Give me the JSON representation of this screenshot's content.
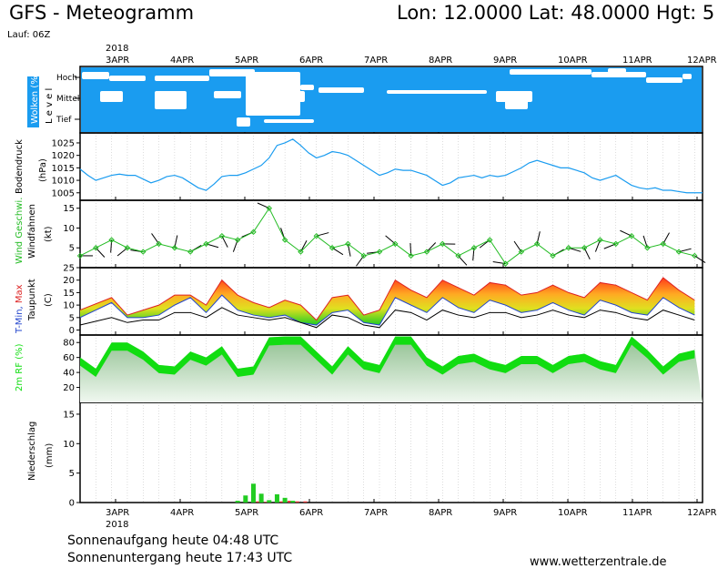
{
  "header": {
    "title": "GFS - Meteogramm",
    "location": "Lon: 12.0000 Lat: 48.0000 Hgt: 5",
    "run": "Lauf: 06Z"
  },
  "footer": {
    "sunrise": "Sonnenaufgang heute 04:48 UTC",
    "sunset": "Sonnenuntergang heute 17:43 UTC",
    "website": "www.wetterzentrale.de"
  },
  "colors": {
    "cloud_sky": "#1a9cf0",
    "pressure_line": "#1a9cf0",
    "wind_line": "#22bb22",
    "tmin": "#2244cc",
    "tmax": "#dd2222",
    "humidity": "#11dd11",
    "precip_conv": "#22cc22",
    "precip_large": "#dd3333"
  },
  "chart_data": {
    "type": "line",
    "x": {
      "dates": [
        "3APR",
        "4APR",
        "5APR",
        "6APR",
        "7APR",
        "8APR",
        "9APR",
        "10APR",
        "11APR",
        "12APR"
      ],
      "year": "2018"
    },
    "panels": [
      {
        "id": "clouds",
        "ylabel": "Wolken (%)",
        "ylabel2": "L e v e l",
        "levels": [
          "Hoch",
          "Mittel",
          "Tief"
        ]
      },
      {
        "id": "pressure",
        "ylabel": "Bodendruck",
        "ylabel2": "(hPa)",
        "yticks": [
          1005,
          1010,
          1015,
          1020,
          1025
        ],
        "ylim": [
          1002,
          1029
        ],
        "series": [
          {
            "t": [
              0,
              0.5,
              1,
              1.5,
              2,
              2.5,
              3,
              3.5,
              4,
              4.5,
              5,
              5.5,
              6,
              6.5,
              7,
              7.5,
              8,
              8.5,
              9,
              9.5,
              10,
              10.5,
              11,
              11.5,
              12,
              12.5,
              13,
              13.5,
              14,
              14.5,
              15,
              15.5,
              16,
              16.5,
              17,
              17.5,
              18,
              18.5,
              19,
              19.5,
              20,
              20.5,
              21,
              21.5,
              22,
              22.5,
              23,
              23.5,
              24,
              24.5,
              25,
              25.5,
              26,
              26.5,
              27,
              27.5,
              28,
              28.5,
              29,
              29.5,
              30,
              30.5,
              31,
              31.5,
              32,
              32.5,
              33,
              33.5,
              34,
              34.5,
              35,
              35.5,
              36,
              36.5,
              37,
              37.5,
              38,
              38.5,
              39,
              39.5
            ],
            "v": [
              1014.5,
              1012,
              1010,
              1011,
              1012,
              1012.5,
              1012,
              1012,
              1010.5,
              1009,
              1010,
              1011.5,
              1012,
              1011,
              1009,
              1007,
              1006,
              1008.5,
              1011.5,
              1012,
              1012,
              1013,
              1014.5,
              1016,
              1019,
              1024,
              1025,
              1026.5,
              1024,
              1021,
              1019,
              1020,
              1021.5,
              1021,
              1020,
              1018,
              1016,
              1014,
              1012,
              1013,
              1014.5,
              1014,
              1014,
              1013,
              1012,
              1010,
              1008,
              1009,
              1011,
              1011.5,
              1012,
              1011,
              1012,
              1011.5,
              1012,
              1013.5,
              1015,
              1017,
              1018,
              1017,
              1016,
              1015,
              1015,
              1014,
              1013,
              1011,
              1010,
              1011,
              1012,
              1010,
              1008,
              1007,
              1006.5,
              1007,
              1006,
              1006,
              1005.5,
              1005,
              1005,
              1005
            ]
          }
        ]
      },
      {
        "id": "wind",
        "ylabel": "Wind Geschwi.",
        "ylabel2": "Windfahnen",
        "ylabel3": "(kt)",
        "yticks": [
          5,
          10,
          15
        ],
        "ylim": [
          0,
          17
        ],
        "series": [
          {
            "t": [
              0,
              1,
              2,
              3,
              4,
              5,
              6,
              7,
              8,
              9,
              10,
              11,
              12,
              13,
              14,
              15,
              16,
              17,
              18,
              19,
              20,
              21,
              22,
              23,
              24,
              25,
              26,
              27,
              28,
              29,
              30,
              31,
              32,
              33,
              34,
              35,
              36,
              37,
              38,
              39
            ],
            "v": [
              3,
              5,
              7,
              5,
              4,
              6,
              5,
              4,
              6,
              8,
              7,
              9,
              15,
              7,
              4,
              8,
              5,
              6,
              3,
              4,
              6,
              3,
              4,
              6,
              3,
              5,
              7,
              1,
              4,
              6,
              3,
              5,
              5,
              7,
              6,
              8,
              5,
              6,
              4,
              3
            ]
          }
        ]
      },
      {
        "id": "temperature",
        "ylabel": "T-Min, Max",
        "ylabel2": "Taupunkt",
        "ylabel3": "(C)",
        "yticks": [
          0,
          5,
          10,
          15,
          20,
          25
        ],
        "ylim": [
          -2,
          25
        ],
        "series": [
          {
            "name": "T-Max",
            "t": [
              0,
              2,
              3,
              4,
              5,
              6,
              7,
              8,
              9,
              10,
              11,
              12,
              13,
              14,
              15,
              16,
              17,
              18,
              19,
              20,
              21,
              22,
              23,
              24,
              25,
              26,
              27,
              28,
              29,
              30,
              31,
              32,
              33,
              34,
              35,
              36,
              37,
              38,
              39
            ],
            "v": [
              8,
              13,
              6,
              8,
              10,
              14,
              14,
              10,
              20,
              14,
              11,
              9,
              12,
              10,
              4,
              13,
              14,
              6,
              8,
              20,
              16,
              13,
              20,
              17,
              14,
              19,
              18,
              14,
              15,
              18,
              15,
              13,
              19,
              18,
              15,
              12,
              21,
              16,
              12
            ]
          },
          {
            "name": "T-Min",
            "t": [
              0,
              2,
              3,
              4,
              5,
              6,
              7,
              8,
              9,
              10,
              11,
              12,
              13,
              14,
              15,
              16,
              17,
              18,
              19,
              20,
              21,
              22,
              23,
              24,
              25,
              26,
              27,
              28,
              29,
              30,
              31,
              32,
              33,
              34,
              35,
              36,
              37,
              38,
              39
            ],
            "v": [
              5,
              11,
              5,
              5,
              6,
              10,
              13,
              7,
              14,
              8,
              6,
              5,
              6,
              3,
              2,
              7,
              8,
              3,
              2,
              13,
              10,
              7,
              13,
              9,
              7,
              12,
              10,
              7,
              8,
              11,
              8,
              6,
              12,
              10,
              7,
              6,
              13,
              9,
              6
            ]
          },
          {
            "name": "Taupunkt",
            "t": [
              0,
              2,
              3,
              4,
              5,
              6,
              7,
              8,
              9,
              10,
              11,
              12,
              13,
              14,
              15,
              16,
              17,
              18,
              19,
              20,
              21,
              22,
              23,
              24,
              25,
              26,
              27,
              28,
              29,
              30,
              31,
              32,
              33,
              34,
              35,
              36,
              37,
              38,
              39
            ],
            "v": [
              2,
              5,
              3,
              4,
              4,
              7,
              7,
              5,
              9,
              6,
              5,
              4,
              5,
              3,
              1,
              6,
              5,
              2,
              1,
              8,
              7,
              4,
              8,
              6,
              5,
              7,
              7,
              5,
              6,
              8,
              6,
              5,
              8,
              7,
              5,
              4,
              8,
              6,
              4
            ]
          }
        ]
      },
      {
        "id": "humidity",
        "ylabel": "2m RF (%)",
        "yticks": [
          20,
          40,
          60,
          80
        ],
        "ylim": [
          0,
          90
        ],
        "series": [
          {
            "t": [
              0,
              1,
              2,
              3,
              4,
              5,
              6,
              7,
              8,
              9,
              10,
              11,
              12,
              13,
              14,
              15,
              16,
              17,
              18,
              19,
              20,
              21,
              22,
              23,
              24,
              25,
              26,
              27,
              28,
              29,
              30,
              31,
              32,
              33,
              34,
              35,
              36,
              37,
              38,
              39
            ],
            "v": [
              60,
              45,
              80,
              80,
              68,
              50,
              48,
              68,
              60,
              75,
              45,
              48,
              87,
              88,
              88,
              68,
              48,
              75,
              55,
              50,
              88,
              88,
              60,
              48,
              62,
              65,
              55,
              50,
              62,
              62,
              50,
              62,
              65,
              55,
              50,
              88,
              70,
              48,
              65,
              70
            ]
          }
        ]
      },
      {
        "id": "precipitation",
        "ylabel": "Niederschlag",
        "ylabel2": "(mm)",
        "yticks": [
          0,
          5,
          10,
          15
        ],
        "ylim": [
          0,
          17
        ],
        "bars": [
          {
            "t": 10.0,
            "conv": 0.3,
            "large": 0
          },
          {
            "t": 10.5,
            "conv": 1.2,
            "large": 0
          },
          {
            "t": 11.0,
            "conv": 3.2,
            "large": 0.2
          },
          {
            "t": 11.5,
            "conv": 1.5,
            "large": 0.1
          },
          {
            "t": 12.0,
            "conv": 0.4,
            "large": 0
          },
          {
            "t": 12.5,
            "conv": 1.4,
            "large": 0.2
          },
          {
            "t": 13.0,
            "conv": 0.8,
            "large": 0.3
          },
          {
            "t": 13.5,
            "conv": 0.3,
            "large": 0.2
          },
          {
            "t": 14.0,
            "conv": 0,
            "large": 0.2
          }
        ]
      }
    ]
  }
}
